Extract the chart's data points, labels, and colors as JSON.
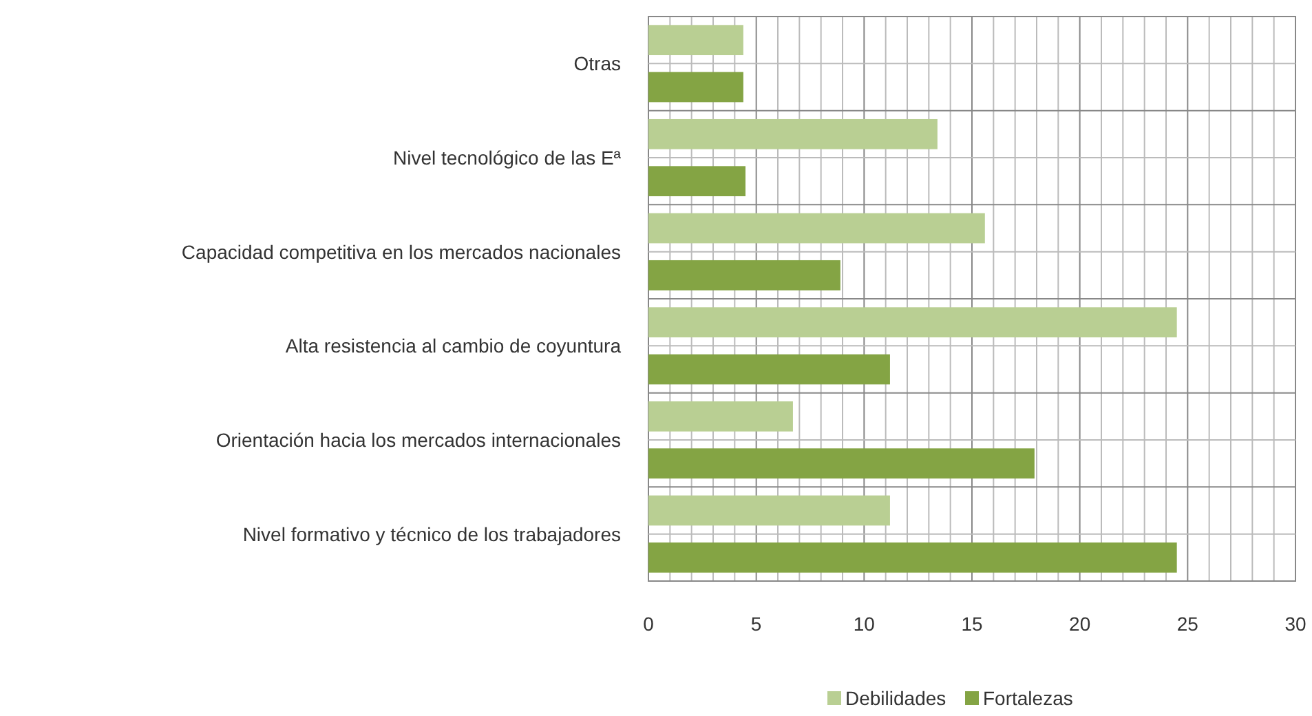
{
  "chart_data": {
    "type": "bar",
    "orientation": "horizontal",
    "categories": [
      "Otras",
      "Nivel tecnológico de las Eª",
      "Capacidad competitiva en los mercados nacionales",
      "Alta resistencia al cambio de coyuntura",
      "Orientación hacia los mercados internacionales",
      "Nivel formativo y técnico de los trabajadores"
    ],
    "series": [
      {
        "name": "Debilidades",
        "color": "#b9cf93",
        "values": [
          4.4,
          13.4,
          15.6,
          24.5,
          6.7,
          11.2
        ]
      },
      {
        "name": "Fortalezas",
        "color": "#84a444",
        "values": [
          4.4,
          4.5,
          8.9,
          11.2,
          17.9,
          24.5
        ]
      }
    ],
    "xlim": [
      0,
      30
    ],
    "xticks": [
      0,
      5,
      10,
      15,
      20,
      25,
      30
    ],
    "grid": true,
    "legend": "bottom"
  }
}
